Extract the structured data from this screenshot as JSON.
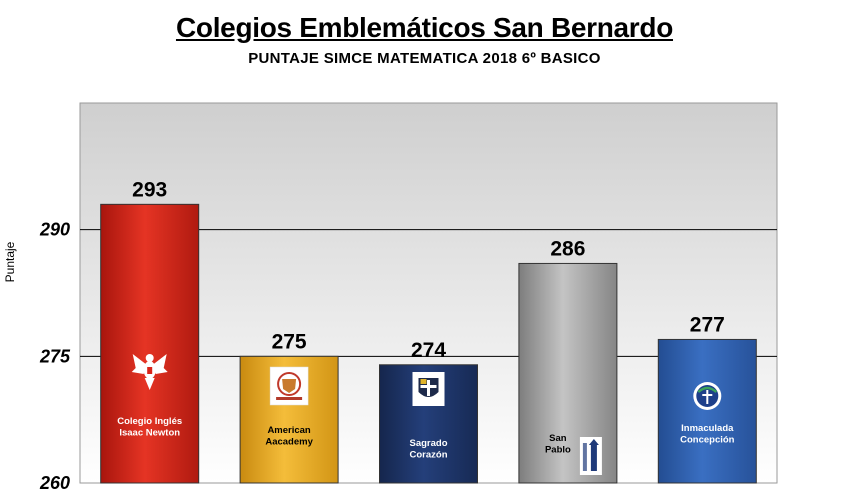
{
  "chart_data": {
    "type": "bar",
    "title": "Colegios Emblemáticos San Bernardo",
    "subtitle": "PUNTAJE SIMCE MATEMATICA 2018  6º BASICO",
    "ylabel": "Puntaje",
    "xlabel": "",
    "ylim": [
      260,
      305
    ],
    "yticks": [
      260,
      275,
      290
    ],
    "grid": true,
    "legend": "none",
    "categories": [
      [
        "Colegio Inglés",
        "Isaac Newton"
      ],
      [
        "American",
        "Aacademy"
      ],
      [
        "Sagrado",
        "Corazón"
      ],
      [
        "San",
        "Pablo"
      ],
      [
        "Inmaculada",
        "Concepción"
      ]
    ],
    "values": [
      293,
      275,
      274,
      286,
      277
    ],
    "bar_colors": [
      "#d8241a",
      "#e8ac22",
      "#1d3468",
      "#9c9c9c",
      "#2e5fae"
    ],
    "label_colors": [
      "#ffffff",
      "#000000",
      "#ffffff",
      "#000000",
      "#ffffff"
    ],
    "icons": [
      "eagle-crest-icon",
      "american-academy-logo-icon",
      "sagrado-corazon-shield-icon",
      "san-pablo-logo-icon",
      "inmaculada-concepcion-logo-icon"
    ]
  }
}
